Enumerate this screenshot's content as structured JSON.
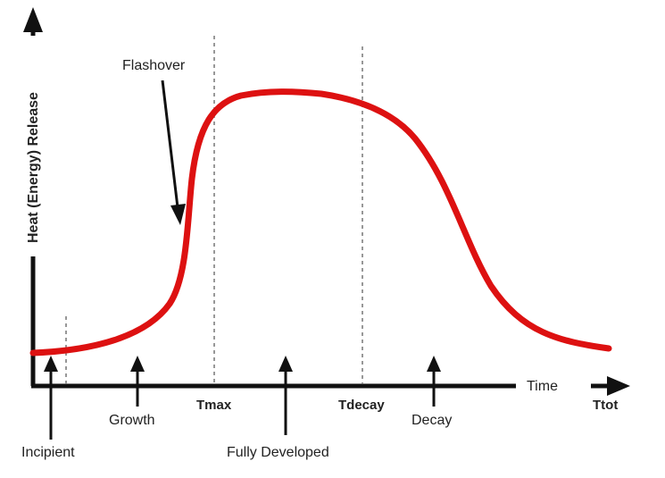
{
  "diagram": {
    "y_axis_label": "Heat (Energy) Release",
    "x_axis_label": "Time",
    "flashover_label": "Flashover",
    "stages": [
      {
        "id": "incipient",
        "label": "Incipient"
      },
      {
        "id": "growth",
        "label": "Growth"
      },
      {
        "id": "fully-developed",
        "label": "Fully Developed"
      },
      {
        "id": "decay",
        "label": "Decay"
      }
    ],
    "markers": [
      {
        "id": "tmax",
        "label": "Tmax"
      },
      {
        "id": "tdecay",
        "label": "Tdecay"
      },
      {
        "id": "ttot",
        "label": "Ttot"
      }
    ],
    "colors": {
      "curve": "#dd1111",
      "axis": "#111111",
      "divider": "#777777",
      "text": "#222222"
    }
  }
}
